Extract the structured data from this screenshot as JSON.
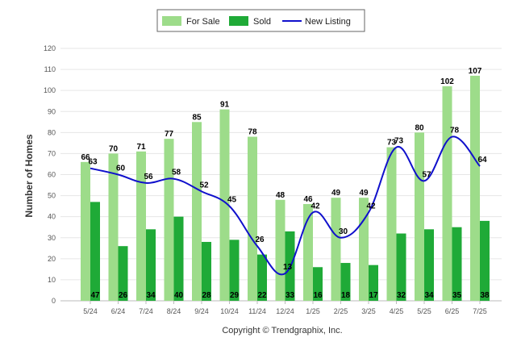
{
  "chart_data": {
    "type": "bar",
    "categories": [
      "5/24",
      "6/24",
      "7/24",
      "8/24",
      "9/24",
      "10/24",
      "11/24",
      "12/24",
      "1/25",
      "2/25",
      "3/25",
      "4/25",
      "5/25",
      "6/25",
      "7/25"
    ],
    "series": [
      {
        "name": "For Sale",
        "type": "bar",
        "color": "#9ddc8a",
        "values": [
          66,
          70,
          71,
          77,
          85,
          91,
          78,
          48,
          46,
          49,
          49,
          73,
          80,
          102,
          107
        ]
      },
      {
        "name": "Sold",
        "type": "bar",
        "color": "#1faa37",
        "values": [
          47,
          26,
          34,
          40,
          28,
          29,
          22,
          33,
          16,
          18,
          17,
          32,
          34,
          35,
          38
        ]
      },
      {
        "name": "New Listing",
        "type": "line",
        "color": "#1010cc",
        "values": [
          63,
          60,
          56,
          58,
          52,
          45,
          26,
          13,
          42,
          30,
          42,
          73,
          57,
          78,
          64
        ]
      }
    ],
    "ylabel": "Number of Homes",
    "ylim": [
      0,
      120
    ],
    "yticks": [
      0,
      10,
      20,
      30,
      40,
      50,
      60,
      70,
      80,
      90,
      100,
      110,
      120
    ],
    "grid": true,
    "legend_position": "top-center"
  },
  "footer": {
    "copyright": "Copyright © Trendgraphix, Inc."
  }
}
